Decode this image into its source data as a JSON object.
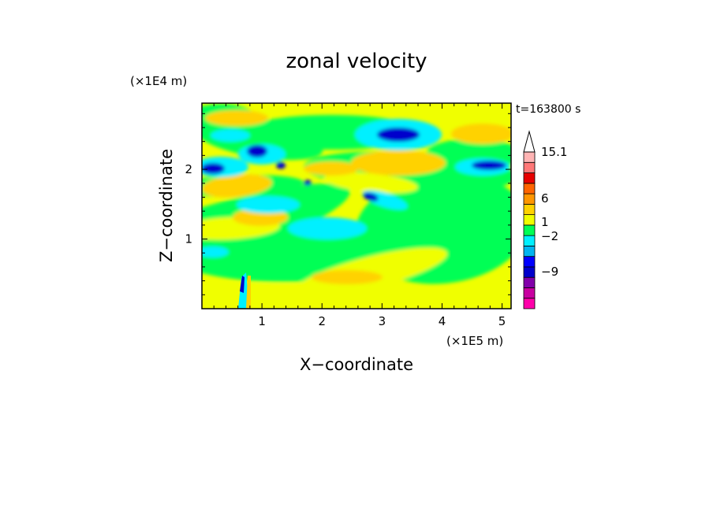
{
  "chart_data": {
    "type": "heatmap",
    "title": "zonal velocity",
    "xlabel": "X−coordinate",
    "ylabel": "Z−coordinate",
    "x_unit": "(×1E5 m)",
    "y_unit": "(×1E4 m)",
    "time_label": "t=163800 s",
    "xlim": [
      0,
      5.15
    ],
    "ylim": [
      0,
      2.95
    ],
    "x_ticks": [
      "1",
      "2",
      "3",
      "4",
      "5"
    ],
    "y_ticks": [
      "1",
      "2"
    ],
    "colorbar": {
      "labels": [
        "15.1",
        "6",
        "1",
        "−2",
        "−9"
      ],
      "levels": [
        {
          "color": "#ff00aa"
        },
        {
          "color": "#c800a0"
        },
        {
          "color": "#8200aa"
        },
        {
          "color": "#0000cc"
        },
        {
          "color": "#0000ff"
        },
        {
          "color": "#00b4f0"
        },
        {
          "color": "#00f0ff"
        },
        {
          "color": "#00ff55"
        },
        {
          "color": "#f0ff00"
        },
        {
          "color": "#ffd200"
        },
        {
          "color": "#ff9600"
        },
        {
          "color": "#ff6400"
        },
        {
          "color": "#e60000"
        },
        {
          "color": "#ff7878"
        },
        {
          "color": "#ffb4b4"
        }
      ]
    },
    "field_colors": {
      "neg_strong": "#0000cc",
      "neg_mid": "#00f0ff",
      "near_zero": "#00ff55",
      "pos_weak": "#f0ff00",
      "pos_mid": "#ffd200"
    }
  }
}
